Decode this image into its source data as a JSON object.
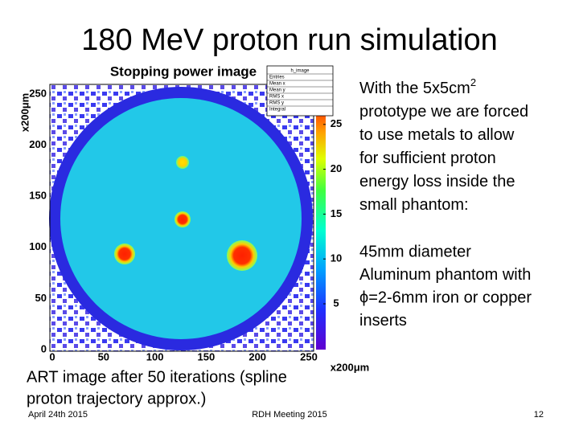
{
  "slide": {
    "title": "180 MeV proton run simulation",
    "figure": {
      "title": "Stopping power image",
      "y_axis_unit": "x200μm",
      "x_axis_unit": "x200μm",
      "x_ticks": [
        "0",
        "50",
        "100",
        "150",
        "200",
        "250"
      ],
      "y_ticks": [
        "0",
        "50",
        "100",
        "150",
        "200",
        "250"
      ],
      "colorbar_ticks": [
        "5",
        "10",
        "15",
        "20",
        "25"
      ],
      "stats_box": {
        "name": "h_image",
        "rows": [
          "Entries",
          "Mean x",
          "Mean y",
          "RMS x",
          "RMS y",
          "Integral"
        ]
      }
    },
    "paragraph_1": [
      {
        "text": "With the 5x5cm",
        "sup": "2"
      },
      {
        "text": "prototype we are forced"
      },
      {
        "text": "to use metals to allow"
      },
      {
        "text": "for sufficient proton"
      },
      {
        "text": "energy loss inside the"
      },
      {
        "text": "small phantom:"
      }
    ],
    "paragraph_2": [
      "45mm diameter",
      "Aluminum phantom with",
      "ϕ=2-6mm iron or copper",
      "inserts"
    ],
    "caption": [
      "ART image after 50 iterations (spline",
      "proton trajectory approx.)"
    ],
    "footer": {
      "date": "April 24th 2015",
      "event": "RDH Meeting 2015",
      "page": "12"
    }
  }
}
